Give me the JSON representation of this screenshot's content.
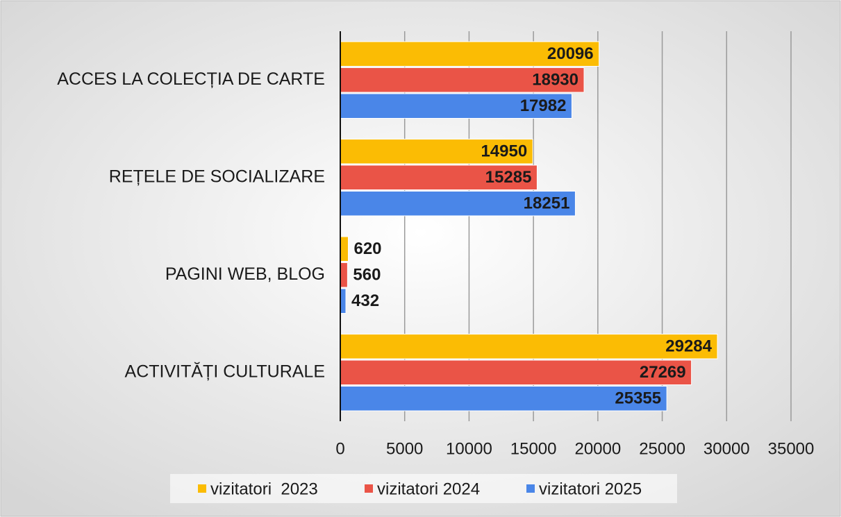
{
  "chart_data": {
    "type": "barh",
    "categories": [
      "ACCES LA COLECȚIA DE CARTE",
      "REȚELE DE SOCIALIZARE",
      "PAGINI WEB, BLOG",
      "ACTIVITĂȚI CULTURALE"
    ],
    "series": [
      {
        "name": "vizitatori  2023",
        "color": "#fbbc04",
        "values": [
          20096,
          14950,
          620,
          29284
        ]
      },
      {
        "name": "vizitatori 2024",
        "color": "#ea5447",
        "values": [
          18930,
          15285,
          560,
          27269
        ]
      },
      {
        "name": "vizitatori 2025",
        "color": "#4a86e8",
        "values": [
          17982,
          18251,
          432,
          25355
        ]
      }
    ],
    "xlim": [
      0,
      35000
    ],
    "xticks": [
      0,
      5000,
      10000,
      15000,
      20000,
      25000,
      30000,
      35000
    ],
    "grid": true,
    "legend": "bottom"
  }
}
